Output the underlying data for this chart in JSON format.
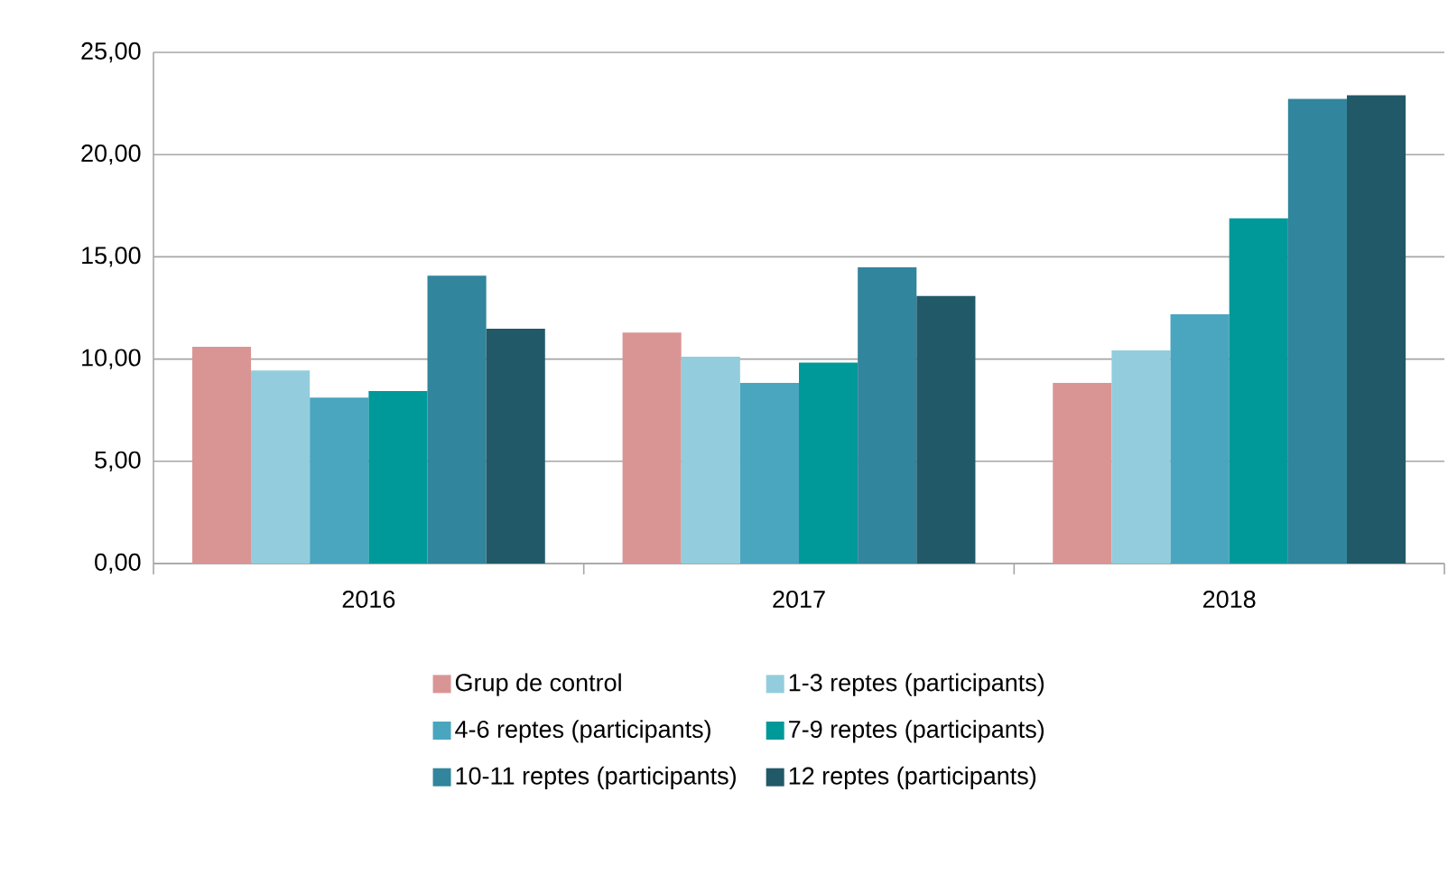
{
  "chart_data": {
    "type": "bar",
    "categories": [
      "2016",
      "2017",
      "2018"
    ],
    "series": [
      {
        "name": "Grup de control",
        "color": "#d99594",
        "values": [
          10.6,
          11.3,
          8.83
        ]
      },
      {
        "name": "1-3 reptes (participants)",
        "color": "#93cddd",
        "values": [
          9.44,
          10.12,
          10.42
        ]
      },
      {
        "name": "4-6 reptes (participants)",
        "color": "#4aa5bf",
        "values": [
          8.12,
          8.83,
          12.19
        ]
      },
      {
        "name": "7-9 reptes (participants)",
        "color": "#009999",
        "values": [
          8.44,
          9.83,
          16.88
        ]
      },
      {
        "name": "10-11 reptes (participants)",
        "color": "#31859c",
        "values": [
          14.08,
          14.49,
          22.73
        ]
      },
      {
        "name": "12 reptes (participants)",
        "color": "#215968",
        "values": [
          11.48,
          13.08,
          22.9
        ]
      }
    ],
    "ylim": [
      0,
      25
    ],
    "yticks": [
      {
        "value": 0,
        "label": "0,00"
      },
      {
        "value": 5,
        "label": "5,00"
      },
      {
        "value": 10,
        "label": "10,00"
      },
      {
        "value": 15,
        "label": "15,00"
      },
      {
        "value": 20,
        "label": "20,00"
      },
      {
        "value": 25,
        "label": "25,00"
      }
    ],
    "grid": "y",
    "legend": "bottom"
  }
}
